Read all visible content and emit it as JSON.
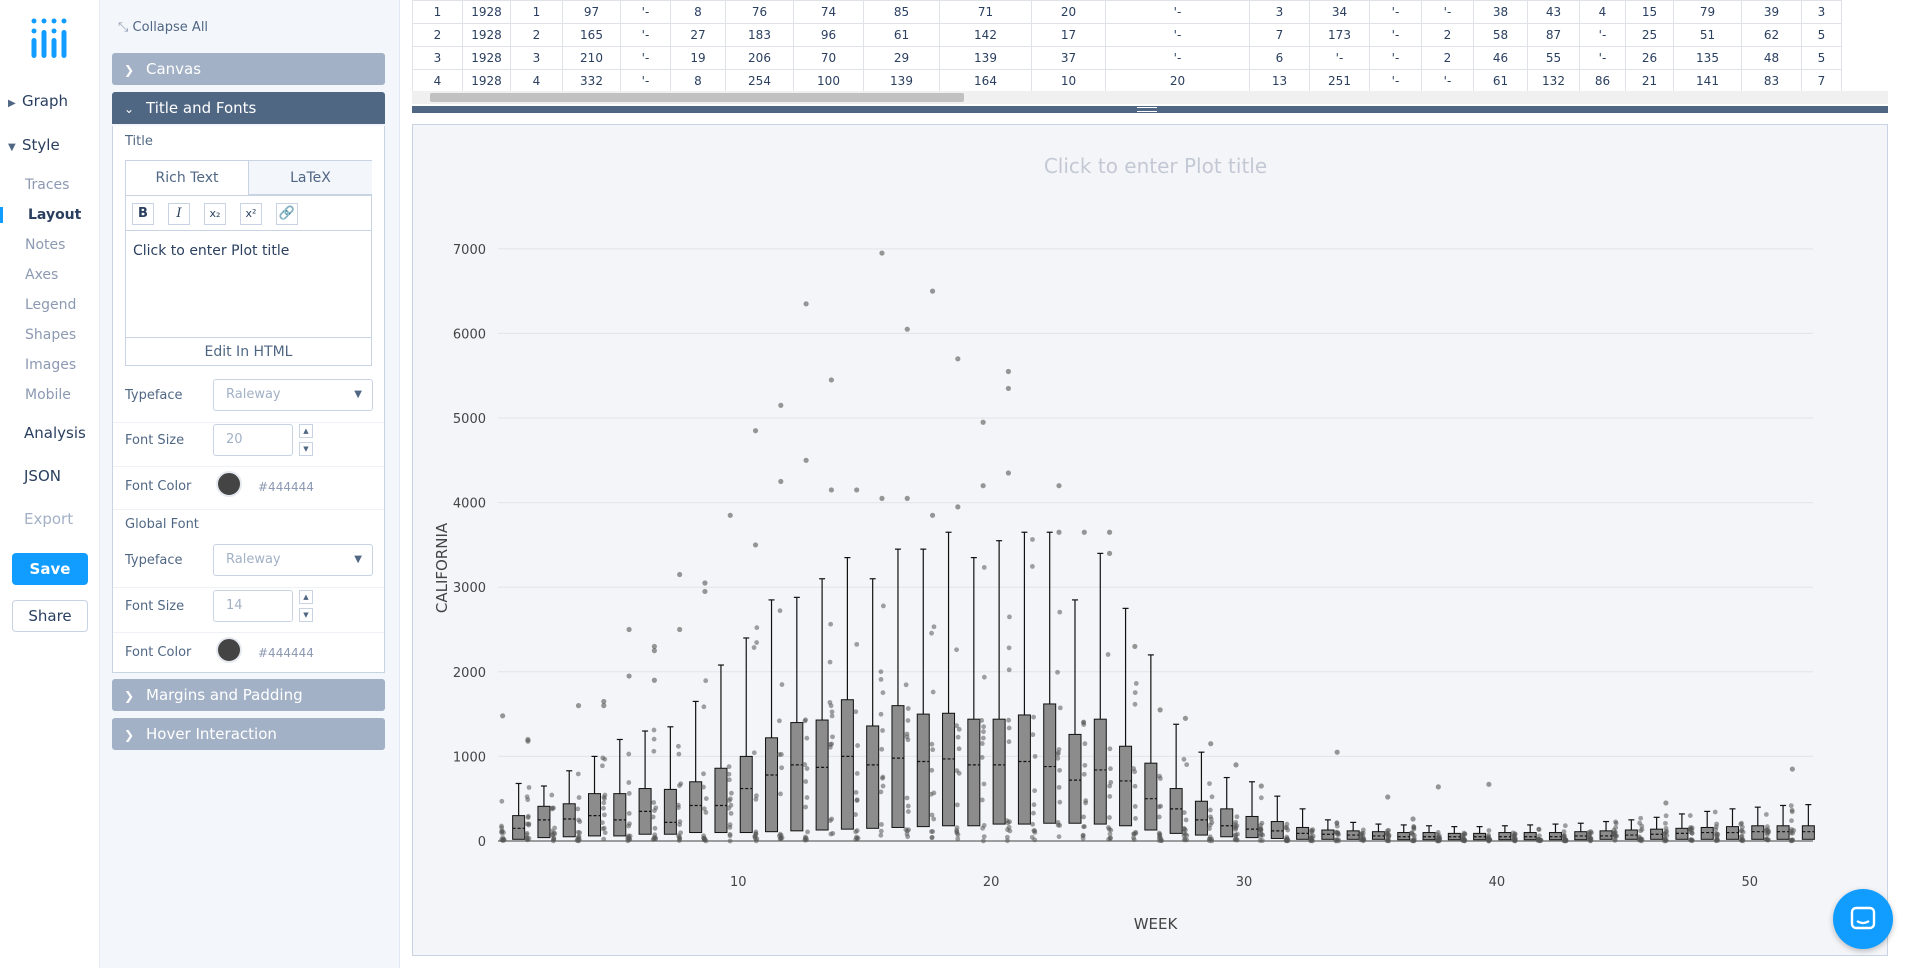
{
  "nav": {
    "graph": "Graph",
    "style": "Style",
    "style_items": [
      "Traces",
      "Layout",
      "Notes",
      "Axes",
      "Legend",
      "Shapes",
      "Images",
      "Mobile"
    ],
    "analysis": "Analysis",
    "json": "JSON",
    "export": "Export",
    "save": "Save",
    "share": "Share"
  },
  "panel": {
    "collapse_all": "Collapse All",
    "canvas": "Canvas",
    "title_fonts": "Title and Fonts",
    "title_label": "Title",
    "tab_rich": "Rich Text",
    "tab_latex": "LaTeX",
    "editor_text": "Click to enter Plot title",
    "edit_html": "Edit In HTML",
    "typeface_label": "Typeface",
    "typeface_value": "Raleway",
    "font_size_label": "Font Size",
    "title_font_size": "20",
    "font_color_label": "Font Color",
    "title_font_color": "#444444",
    "global_font": "Global Font",
    "global_typeface": "Raleway",
    "global_font_size": "14",
    "global_font_color": "#444444",
    "margins": "Margins and Padding",
    "hover": "Hover Interaction"
  },
  "grid": {
    "rows": [
      [
        "1",
        "1928",
        "1",
        "97",
        "'-",
        "8",
        "76",
        "74",
        "85",
        "71",
        "20",
        "'-",
        "3",
        "34",
        "'-",
        "'-",
        "38",
        "43",
        "4",
        "15",
        "79",
        "39",
        "3"
      ],
      [
        "2",
        "1928",
        "2",
        "165",
        "'-",
        "27",
        "183",
        "96",
        "61",
        "142",
        "17",
        "'-",
        "7",
        "173",
        "'-",
        "2",
        "58",
        "87",
        "'-",
        "25",
        "51",
        "62",
        "5"
      ],
      [
        "3",
        "1928",
        "3",
        "210",
        "'-",
        "19",
        "206",
        "70",
        "29",
        "139",
        "37",
        "'-",
        "6",
        "'-",
        "'-",
        "2",
        "46",
        "55",
        "'-",
        "26",
        "135",
        "48",
        "5"
      ],
      [
        "4",
        "1928",
        "4",
        "332",
        "'-",
        "8",
        "254",
        "100",
        "139",
        "164",
        "10",
        "20",
        "13",
        "251",
        "'-",
        "'-",
        "61",
        "132",
        "86",
        "21",
        "141",
        "83",
        "7"
      ]
    ]
  },
  "chart_data": {
    "type": "box",
    "title": "Click to enter Plot title",
    "xlabel": "WEEK",
    "ylabel": "CALIFORNIA",
    "xlim": [
      0.5,
      52.5
    ],
    "ylim": [
      0,
      7400
    ],
    "x_ticks": [
      10,
      20,
      30,
      40,
      50
    ],
    "y_ticks": [
      0,
      1000,
      2000,
      3000,
      4000,
      5000,
      6000,
      7000
    ],
    "grid": true,
    "box_color": "#8c8c8c",
    "point_color": "#555555",
    "boxes": [
      {
        "week": 1,
        "q1": 20,
        "median": 150,
        "q3": 300,
        "upper": 680,
        "outliers": [
          1480
        ]
      },
      {
        "week": 2,
        "q1": 40,
        "median": 250,
        "q3": 410,
        "upper": 650,
        "outliers": [
          1180,
          1200
        ]
      },
      {
        "week": 3,
        "q1": 50,
        "median": 260,
        "q3": 440,
        "upper": 830,
        "outliers": []
      },
      {
        "week": 4,
        "q1": 60,
        "median": 300,
        "q3": 560,
        "upper": 1000,
        "outliers": [
          1600
        ]
      },
      {
        "week": 5,
        "q1": 60,
        "median": 250,
        "q3": 560,
        "upper": 1200,
        "outliers": [
          1600,
          1650
        ]
      },
      {
        "week": 6,
        "q1": 80,
        "median": 350,
        "q3": 620,
        "upper": 1300,
        "outliers": [
          1950,
          2500
        ]
      },
      {
        "week": 7,
        "q1": 80,
        "median": 220,
        "q3": 610,
        "upper": 1350,
        "outliers": [
          1900,
          2250,
          2300
        ]
      },
      {
        "week": 8,
        "q1": 100,
        "median": 420,
        "q3": 700,
        "upper": 1650,
        "outliers": [
          2500,
          3150
        ]
      },
      {
        "week": 9,
        "q1": 100,
        "median": 420,
        "q3": 860,
        "upper": 2080,
        "outliers": [
          2950,
          3050
        ]
      },
      {
        "week": 10,
        "q1": 100,
        "median": 620,
        "q3": 1000,
        "upper": 2400,
        "outliers": [
          3850
        ]
      },
      {
        "week": 11,
        "q1": 110,
        "median": 780,
        "q3": 1220,
        "upper": 2850,
        "outliers": [
          3500,
          4850
        ]
      },
      {
        "week": 12,
        "q1": 120,
        "median": 900,
        "q3": 1400,
        "upper": 2880,
        "outliers": [
          4250,
          5150
        ]
      },
      {
        "week": 13,
        "q1": 130,
        "median": 870,
        "q3": 1430,
        "upper": 3100,
        "outliers": [
          4500,
          6350
        ]
      },
      {
        "week": 14,
        "q1": 140,
        "median": 1000,
        "q3": 1670,
        "upper": 3350,
        "outliers": [
          4150,
          5450
        ]
      },
      {
        "week": 15,
        "q1": 150,
        "median": 900,
        "q3": 1360,
        "upper": 3100,
        "outliers": [
          4150
        ]
      },
      {
        "week": 16,
        "q1": 160,
        "median": 980,
        "q3": 1600,
        "upper": 3450,
        "outliers": [
          4050,
          6950
        ]
      },
      {
        "week": 17,
        "q1": 170,
        "median": 940,
        "q3": 1500,
        "upper": 3450,
        "outliers": [
          4050,
          6050
        ]
      },
      {
        "week": 18,
        "q1": 180,
        "median": 970,
        "q3": 1510,
        "upper": 3650,
        "outliers": [
          3850,
          6500
        ]
      },
      {
        "week": 19,
        "q1": 180,
        "median": 900,
        "q3": 1440,
        "upper": 3350,
        "outliers": [
          3950,
          5700
        ]
      },
      {
        "week": 20,
        "q1": 200,
        "median": 900,
        "q3": 1440,
        "upper": 3550,
        "outliers": [
          4200,
          4950
        ]
      },
      {
        "week": 21,
        "q1": 200,
        "median": 940,
        "q3": 1490,
        "upper": 3650,
        "outliers": [
          4350,
          5350,
          5550
        ]
      },
      {
        "week": 22,
        "q1": 210,
        "median": 880,
        "q3": 1620,
        "upper": 3650,
        "outliers": []
      },
      {
        "week": 23,
        "q1": 210,
        "median": 720,
        "q3": 1260,
        "upper": 2850,
        "outliers": [
          3650,
          4200
        ]
      },
      {
        "week": 24,
        "q1": 200,
        "median": 840,
        "q3": 1440,
        "upper": 3400,
        "outliers": [
          3650
        ]
      },
      {
        "week": 25,
        "q1": 180,
        "median": 710,
        "q3": 1120,
        "upper": 2750,
        "outliers": [
          3400,
          3650
        ]
      },
      {
        "week": 26,
        "q1": 130,
        "median": 500,
        "q3": 920,
        "upper": 2200,
        "outliers": [
          2300
        ]
      },
      {
        "week": 27,
        "q1": 90,
        "median": 380,
        "q3": 620,
        "upper": 1380,
        "outliers": [
          1550
        ]
      },
      {
        "week": 28,
        "q1": 70,
        "median": 250,
        "q3": 470,
        "upper": 1050,
        "outliers": [
          1450
        ]
      },
      {
        "week": 29,
        "q1": 50,
        "median": 180,
        "q3": 380,
        "upper": 750,
        "outliers": [
          1150
        ]
      },
      {
        "week": 30,
        "q1": 40,
        "median": 140,
        "q3": 290,
        "upper": 700,
        "outliers": [
          900
        ]
      },
      {
        "week": 31,
        "q1": 30,
        "median": 120,
        "q3": 230,
        "upper": 530,
        "outliers": [
          650
        ]
      },
      {
        "week": 32,
        "q1": 20,
        "median": 90,
        "q3": 160,
        "upper": 380,
        "outliers": []
      },
      {
        "week": 33,
        "q1": 20,
        "median": 80,
        "q3": 130,
        "upper": 250,
        "outliers": []
      },
      {
        "week": 34,
        "q1": 20,
        "median": 70,
        "q3": 120,
        "upper": 220,
        "outliers": [
          1050
        ]
      },
      {
        "week": 35,
        "q1": 20,
        "median": 60,
        "q3": 110,
        "upper": 200,
        "outliers": []
      },
      {
        "week": 36,
        "q1": 15,
        "median": 50,
        "q3": 100,
        "upper": 190,
        "outliers": [
          520
        ]
      },
      {
        "week": 37,
        "q1": 15,
        "median": 50,
        "q3": 100,
        "upper": 180,
        "outliers": [
          260
        ]
      },
      {
        "week": 38,
        "q1": 15,
        "median": 50,
        "q3": 90,
        "upper": 170,
        "outliers": [
          640
        ]
      },
      {
        "week": 39,
        "q1": 15,
        "median": 50,
        "q3": 90,
        "upper": 170,
        "outliers": []
      },
      {
        "week": 40,
        "q1": 15,
        "median": 50,
        "q3": 100,
        "upper": 180,
        "outliers": [
          670
        ]
      },
      {
        "week": 41,
        "q1": 15,
        "median": 50,
        "q3": 100,
        "upper": 190,
        "outliers": []
      },
      {
        "week": 42,
        "q1": 15,
        "median": 50,
        "q3": 100,
        "upper": 200,
        "outliers": []
      },
      {
        "week": 43,
        "q1": 15,
        "median": 60,
        "q3": 110,
        "upper": 210,
        "outliers": []
      },
      {
        "week": 44,
        "q1": 20,
        "median": 60,
        "q3": 120,
        "upper": 230,
        "outliers": []
      },
      {
        "week": 45,
        "q1": 20,
        "median": 70,
        "q3": 130,
        "upper": 250,
        "outliers": []
      },
      {
        "week": 46,
        "q1": 20,
        "median": 80,
        "q3": 140,
        "upper": 280,
        "outliers": []
      },
      {
        "week": 47,
        "q1": 20,
        "median": 90,
        "q3": 150,
        "upper": 320,
        "outliers": [
          450
        ]
      },
      {
        "week": 48,
        "q1": 20,
        "median": 100,
        "q3": 160,
        "upper": 350,
        "outliers": []
      },
      {
        "week": 49,
        "q1": 20,
        "median": 100,
        "q3": 170,
        "upper": 380,
        "outliers": []
      },
      {
        "week": 50,
        "q1": 20,
        "median": 110,
        "q3": 180,
        "upper": 400,
        "outliers": []
      },
      {
        "week": 51,
        "q1": 20,
        "median": 110,
        "q3": 180,
        "upper": 420,
        "outliers": []
      },
      {
        "week": 52,
        "q1": 20,
        "median": 110,
        "q3": 180,
        "upper": 430,
        "outliers": [
          850
        ]
      }
    ]
  }
}
